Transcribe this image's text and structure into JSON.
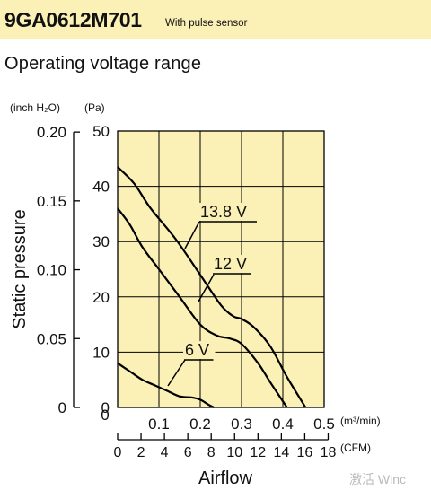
{
  "header": {
    "model": "9GA0612M701",
    "subtitle": "With pulse sensor"
  },
  "section_title": "Operating voltage range",
  "watermark": "激活 Winc",
  "chart_data": {
    "type": "line",
    "title": "",
    "xlabel": "Airflow",
    "ylabel": "Static pressure",
    "xlim": [
      0,
      0.5
    ],
    "ylim": [
      0,
      50
    ],
    "grid": true,
    "x_ticks": [
      "0.1",
      "0.2",
      "0.3",
      "0.4",
      "0.5"
    ],
    "x_unit": "(m³/min)",
    "x2_ticks": [
      "0",
      "2",
      "4",
      "6",
      "8",
      "10",
      "12",
      "14",
      "16",
      "18"
    ],
    "x2_unit": "(CFM)",
    "y_ticks_pa": [
      "0",
      "10",
      "20",
      "30",
      "40",
      "50"
    ],
    "y_unit_pa": "(Pa)",
    "y_ticks_inch": [
      "0",
      "0.05",
      "0.10",
      "0.15",
      "0.20"
    ],
    "y_unit_inch": "(inch H₂O)",
    "series": [
      {
        "name": "13.8 V",
        "x": [
          0,
          0.04,
          0.08,
          0.14,
          0.2,
          0.25,
          0.28,
          0.3,
          0.33,
          0.37,
          0.41,
          0.455
        ],
        "y": [
          43.5,
          40.5,
          36.0,
          30.5,
          24.0,
          18.5,
          16.5,
          16.0,
          14.5,
          11.0,
          5.5,
          0
        ]
      },
      {
        "name": "12 V",
        "x": [
          0,
          0.03,
          0.06,
          0.1,
          0.15,
          0.2,
          0.24,
          0.27,
          0.3,
          0.34,
          0.37,
          0.41
        ],
        "y": [
          36.0,
          33.0,
          29.0,
          25.0,
          20.0,
          15.0,
          13.0,
          12.5,
          11.5,
          8.0,
          4.5,
          0
        ]
      },
      {
        "name": "6 V",
        "x": [
          0,
          0.03,
          0.06,
          0.09,
          0.12,
          0.15,
          0.18,
          0.2,
          0.22,
          0.233
        ],
        "y": [
          8.0,
          6.5,
          5.0,
          4.0,
          3.0,
          2.0,
          1.8,
          1.4,
          0.5,
          0
        ]
      }
    ],
    "annotations": [
      {
        "text": "13.8 V",
        "series": "13.8 V"
      },
      {
        "text": "12 V",
        "series": "12 V"
      },
      {
        "text": "6 V",
        "series": "6 V"
      }
    ],
    "colors": {
      "plot_background": "#fbf1b6",
      "lines": "#000000"
    }
  }
}
